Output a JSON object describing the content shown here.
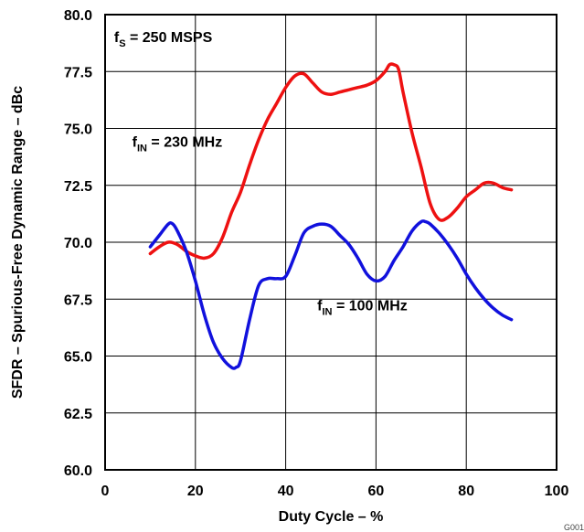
{
  "chart_data": {
    "type": "line",
    "xlabel": "Duty Cycle – %",
    "ylabel": "SFDR – Spurious-Free Dynamic Range – dBc",
    "xlim": [
      0,
      100
    ],
    "ylim": [
      60,
      80
    ],
    "x_ticks": [
      "0",
      "20",
      "40",
      "60",
      "80",
      "100"
    ],
    "y_ticks": [
      "60.0",
      "62.5",
      "65.0",
      "67.5",
      "70.0",
      "72.5",
      "75.0",
      "77.5",
      "80.0"
    ],
    "grid": true,
    "annotations": [
      {
        "main": "f",
        "sub": "S",
        "rest": " = 250 MSPS",
        "x": 2,
        "y": 78.8
      },
      {
        "main": "f",
        "sub": "IN",
        "rest": " = 230 MHz",
        "x": 6,
        "y": 74.2
      },
      {
        "main": "f",
        "sub": "IN",
        "rest": " = 100 MHz",
        "x": 47,
        "y": 67.0
      }
    ],
    "series": [
      {
        "color": "#ee1111",
        "x": [
          10,
          12,
          14,
          16,
          18,
          20,
          22,
          24,
          26,
          28,
          30,
          32,
          34,
          36,
          38,
          40,
          42,
          44,
          46,
          48,
          50,
          52,
          54,
          56,
          58,
          60,
          62,
          63,
          64,
          65,
          66,
          68,
          70,
          72,
          74,
          76,
          78,
          80,
          82,
          84,
          86,
          88,
          90
        ],
        "y": [
          69.5,
          69.8,
          70.0,
          69.9,
          69.6,
          69.4,
          69.3,
          69.5,
          70.2,
          71.3,
          72.2,
          73.4,
          74.5,
          75.4,
          76.1,
          76.8,
          77.3,
          77.4,
          77.0,
          76.6,
          76.5,
          76.6,
          76.7,
          76.8,
          76.9,
          77.1,
          77.5,
          77.8,
          77.8,
          77.6,
          76.6,
          74.8,
          73.3,
          71.7,
          71.0,
          71.1,
          71.5,
          72.0,
          72.3,
          72.6,
          72.6,
          72.4,
          72.3
        ]
      },
      {
        "color": "#1111dd",
        "x": [
          10,
          12,
          14,
          15,
          16,
          18,
          20,
          22,
          24,
          26,
          28,
          29,
          30,
          32,
          34,
          36,
          38,
          40,
          42,
          44,
          46,
          48,
          50,
          52,
          54,
          56,
          58,
          60,
          62,
          64,
          66,
          68,
          70,
          71,
          72,
          74,
          76,
          78,
          80,
          82,
          84,
          86,
          88,
          90
        ],
        "y": [
          69.8,
          70.3,
          70.8,
          70.8,
          70.5,
          69.6,
          68.3,
          66.8,
          65.6,
          64.9,
          64.5,
          64.5,
          64.8,
          66.6,
          68.1,
          68.4,
          68.4,
          68.5,
          69.4,
          70.4,
          70.7,
          70.8,
          70.7,
          70.3,
          69.9,
          69.3,
          68.6,
          68.3,
          68.5,
          69.2,
          69.8,
          70.5,
          70.9,
          70.9,
          70.8,
          70.4,
          69.9,
          69.3,
          68.6,
          68.0,
          67.5,
          67.1,
          66.8,
          66.6
        ]
      }
    ]
  },
  "figure_id": "G001"
}
